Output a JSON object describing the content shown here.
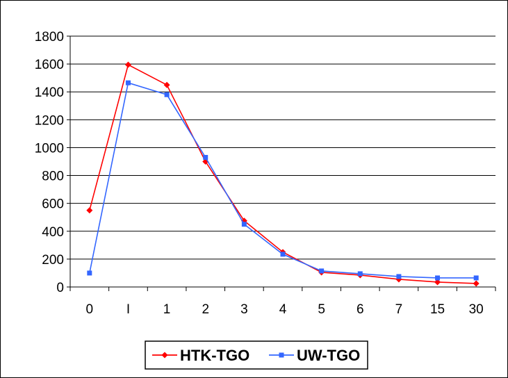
{
  "chart_data": {
    "type": "line",
    "categories": [
      "0",
      "I",
      "1",
      "2",
      "3",
      "4",
      "5",
      "6",
      "7",
      "15",
      "30"
    ],
    "series": [
      {
        "name": "HTK-TGO",
        "color": "#ff0000",
        "marker": "diamond",
        "values": [
          550,
          1595,
          1450,
          900,
          475,
          250,
          105,
          85,
          55,
          35,
          25
        ]
      },
      {
        "name": "UW-TGO",
        "color": "#3366ff",
        "marker": "square",
        "values": [
          100,
          1465,
          1380,
          930,
          450,
          235,
          115,
          95,
          75,
          65,
          65
        ]
      }
    ],
    "y_ticks": [
      "0",
      "200",
      "400",
      "600",
      "800",
      "1000",
      "1200",
      "1400",
      "1600",
      "1800"
    ],
    "ylim": [
      0,
      1800
    ],
    "grid": "horizontal",
    "legend_position": "bottom",
    "title": "",
    "xlabel": "",
    "ylabel": ""
  }
}
